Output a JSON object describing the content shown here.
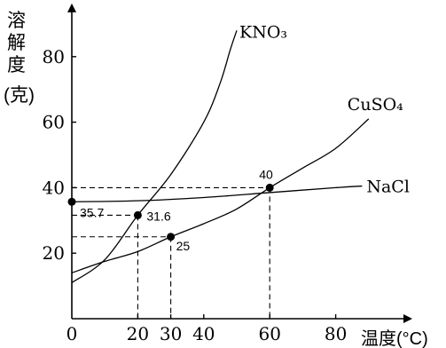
{
  "chart_data": {
    "type": "line",
    "ylabel_chars": [
      "溶",
      "解",
      "度",
      "(克)"
    ],
    "xlabel": "温度(°C)",
    "x_ticks": [
      0,
      20,
      30,
      40,
      60,
      80
    ],
    "y_ticks": [
      20,
      40,
      60,
      80
    ],
    "xlim": [
      0,
      100
    ],
    "ylim": [
      0,
      93
    ],
    "grid": false,
    "series": [
      {
        "name": "KNO₃",
        "points": [
          [
            0,
            11
          ],
          [
            10,
            18
          ],
          [
            20,
            31.6
          ],
          [
            30,
            44
          ],
          [
            40,
            60
          ],
          [
            45,
            72
          ],
          [
            48,
            82
          ],
          [
            50,
            88
          ]
        ]
      },
      {
        "name": "CuSO₄",
        "points": [
          [
            0,
            14
          ],
          [
            10,
            17.5
          ],
          [
            20,
            20.5
          ],
          [
            30,
            25
          ],
          [
            40,
            29
          ],
          [
            50,
            33.5
          ],
          [
            60,
            40
          ],
          [
            70,
            46
          ],
          [
            80,
            52
          ],
          [
            90,
            61
          ]
        ]
      },
      {
        "name": "NaCl",
        "points": [
          [
            0,
            35.7
          ],
          [
            20,
            36
          ],
          [
            40,
            37
          ],
          [
            60,
            38.5
          ],
          [
            80,
            40
          ],
          [
            88,
            40.5
          ]
        ]
      }
    ],
    "highlight_points": [
      {
        "x": 0,
        "y": 35.7,
        "label": "35.7"
      },
      {
        "x": 20,
        "y": 31.6,
        "label": "31.6"
      },
      {
        "x": 30,
        "y": 25,
        "label": "25"
      },
      {
        "x": 60,
        "y": 40,
        "label": "40"
      }
    ]
  }
}
